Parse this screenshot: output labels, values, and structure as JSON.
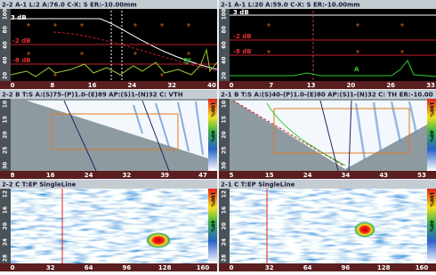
{
  "panels": [
    {
      "header": "2-2 A-1  L:2  A:76.0  C-X: S    ER:-10.00mm",
      "left_scale": [
        "100",
        "80",
        "60",
        "40",
        "20"
      ],
      "bottom_scale": [
        "0",
        "8",
        "16",
        "24",
        "32",
        "40"
      ],
      "annotations": [
        "3 dB",
        "-2 dB",
        "-8 dB"
      ]
    },
    {
      "header": "2-1 A-1  L:20  A:59.0  C-X: S    ER:-10.00mm",
      "left_scale": [
        "100",
        "80",
        "60",
        "40",
        "20"
      ],
      "bottom_scale": [
        "0",
        "7",
        "13",
        "20",
        "26",
        "33"
      ],
      "annotations": [
        "3 dB",
        "-2 dB",
        "-8 dB",
        "A"
      ]
    },
    {
      "header": "2-2 B T:S A:(S)75-(P)1.0-(E)89 AP:(S)1-(N)32 C: VTH",
      "left_scale": [
        "10",
        "15",
        "20",
        "25",
        "30"
      ],
      "bottom_scale": [
        "8",
        "16",
        "24",
        "32",
        "39",
        "47"
      ],
      "color_scale": [
        "100%",
        "40%"
      ]
    },
    {
      "header": "2-1 B T:S A:(S)40-(P)1.0-(E)80 AP:(S)1-(N)32 C: TH  ER:-10.00",
      "left_scale": [
        "10",
        "15",
        "20",
        "25",
        "30"
      ],
      "bottom_scale": [
        "5",
        "15",
        "24",
        "34",
        "43",
        "53"
      ],
      "color_scale": [
        "100%",
        "40%"
      ]
    },
    {
      "header": "2-2 C T:EP  SingleLine",
      "left_scale": [
        "12",
        "16",
        "20",
        "24",
        "28"
      ],
      "bottom_scale": [
        "0",
        "32",
        "64",
        "96",
        "128",
        "160"
      ],
      "color_scale": [
        "100%",
        "40%"
      ]
    },
    {
      "header": "2-1 C T:EP  SingleLine",
      "left_scale": [
        "12",
        "16",
        "20",
        "24",
        "28"
      ],
      "bottom_scale": [
        "0",
        "32",
        "64",
        "96",
        "128",
        "160"
      ],
      "color_scale": [
        "100%",
        "40%"
      ]
    }
  ]
}
